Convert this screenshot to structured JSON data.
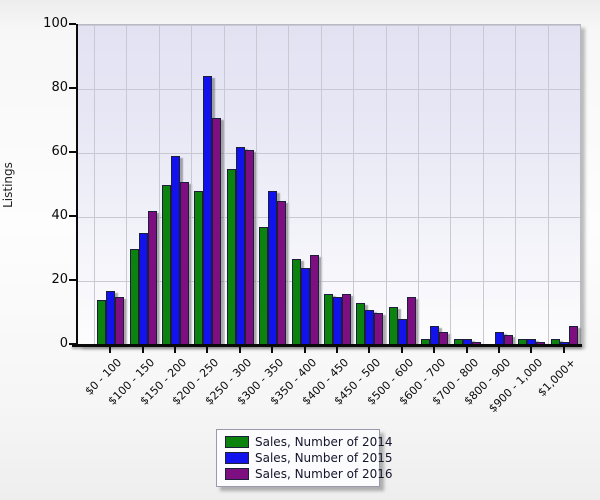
{
  "chart_data": {
    "type": "bar",
    "title": "",
    "xlabel": "",
    "ylabel": "Listings",
    "ylim": [
      0,
      100
    ],
    "yticks": [
      0,
      20,
      40,
      60,
      80,
      100
    ],
    "grid": true,
    "legend_position": "bottom-center",
    "plot_bg_top": "#e2e2f3",
    "plot_bg_bottom": "#fdfdfe",
    "categories": [
      "$0 - 100",
      "$100 - 150",
      "$150 - 200",
      "$200 - 250",
      "$250 - 300",
      "$300 - 350",
      "$350 - 400",
      "$400 - 450",
      "$450 - 500",
      "$500 - 600",
      "$600 - 700",
      "$700 - 800",
      "$800 - 900",
      "$900 - 1,000",
      "$1,000+"
    ],
    "series": [
      {
        "name": "Sales, Number of 2014",
        "color": "#0c830e",
        "values": [
          14,
          30,
          50,
          48,
          55,
          37,
          27,
          16,
          13,
          12,
          2,
          2,
          0,
          2,
          2
        ]
      },
      {
        "name": "Sales, Number of 2015",
        "color": "#1212ec",
        "values": [
          17,
          35,
          59,
          84,
          62,
          48,
          24,
          15,
          11,
          8,
          6,
          2,
          4,
          2,
          1
        ]
      },
      {
        "name": "Sales, Number of 2016",
        "color": "#7e0f80",
        "values": [
          15,
          42,
          51,
          71,
          61,
          45,
          28,
          16,
          10,
          15,
          4,
          1,
          3,
          1,
          6
        ]
      }
    ]
  }
}
